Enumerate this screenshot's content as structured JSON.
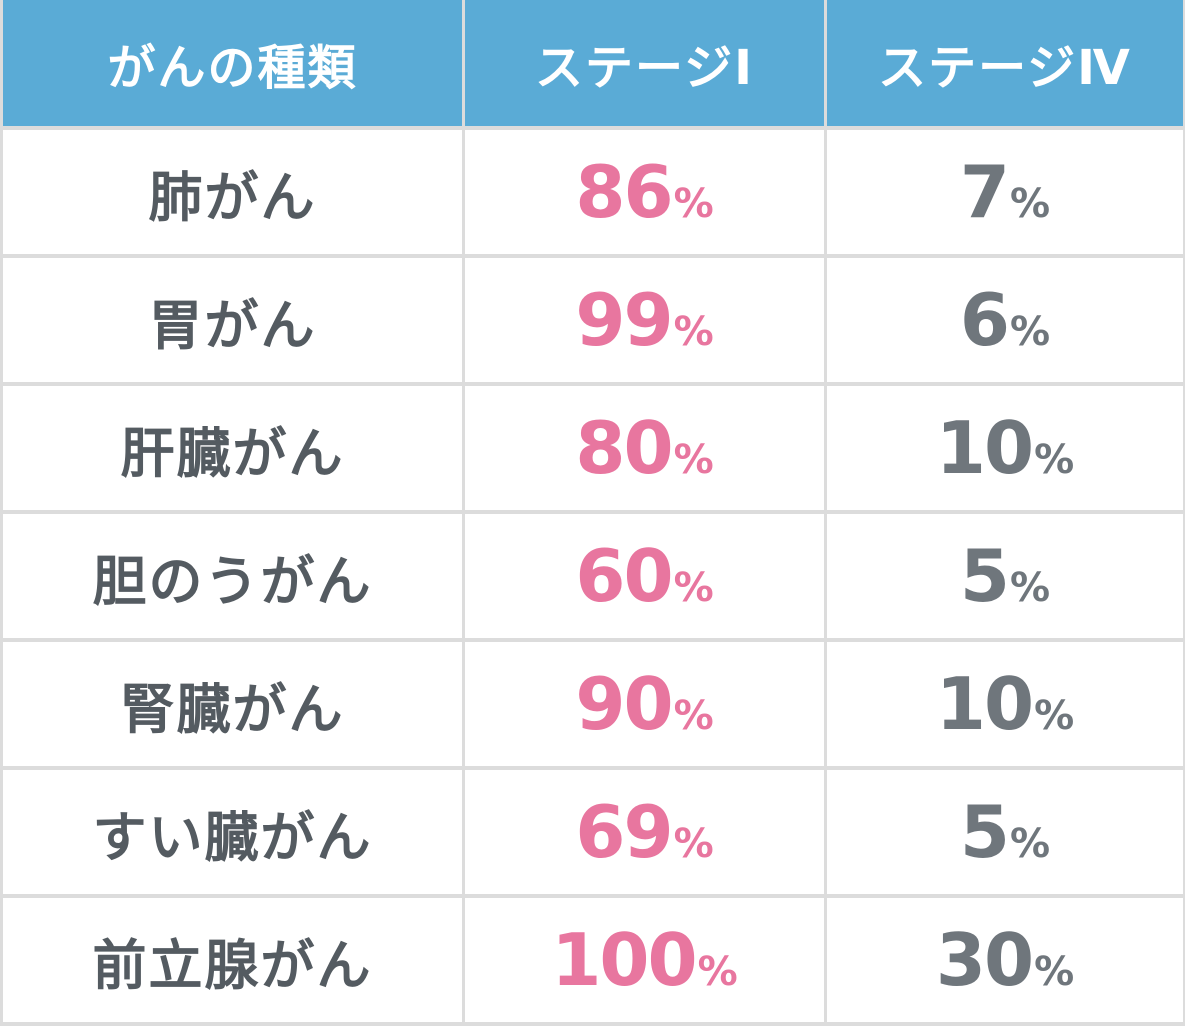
{
  "chart_data": {
    "type": "table",
    "columns": [
      "がんの種類",
      "ステージⅠ",
      "ステージⅣ"
    ],
    "unit": "%",
    "rows": [
      {
        "cancer": "肺がん",
        "stage1": 86,
        "stage4": 7
      },
      {
        "cancer": "胃がん",
        "stage1": 99,
        "stage4": 6
      },
      {
        "cancer": "肝臓がん",
        "stage1": 80,
        "stage4": 10
      },
      {
        "cancer": "胆のうがん",
        "stage1": 60,
        "stage4": 5
      },
      {
        "cancer": "腎臓がん",
        "stage1": 90,
        "stage4": 10
      },
      {
        "cancer": "すい臓がん",
        "stage1": 69,
        "stage4": 5
      },
      {
        "cancer": "前立腺がん",
        "stage1": 100,
        "stage4": 30
      }
    ]
  },
  "colors": {
    "header_bg": "#5aabd6",
    "header_text": "#ffffff",
    "stage1_value": "#e8769f",
    "stage4_value": "#6f767c",
    "name_text": "#545b61",
    "grid_line": "#dcdcdc"
  }
}
